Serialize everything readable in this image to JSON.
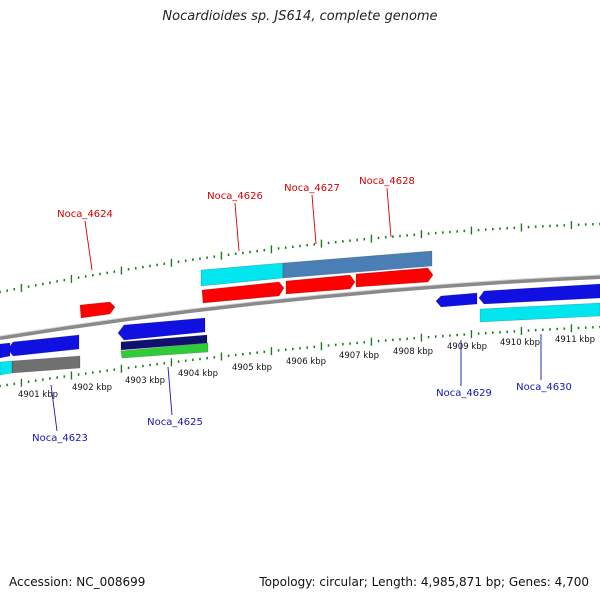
{
  "header": {
    "title": "Nocardioides sp. JS614, complete genome"
  },
  "footer": {
    "accession": "Accession: NC_008699",
    "stats": "Topology: circular; Length: 4,985,871 bp; Genes: 4,700"
  },
  "colors": {
    "backbone": "#8a8a8a",
    "tick": "#1f7a1f",
    "forward_gene": "#ff0000",
    "reverse_gene": "#1010e0",
    "forward_label": "#d40000",
    "reverse_label": "#1515b0",
    "cyan_feature": "#00e5ee",
    "steel_feature": "#4a7fb5",
    "navy_feature": "#101070",
    "green_feature": "#2fcc3a",
    "gray_feature": "#707070"
  },
  "scale_labels": [
    "4901 kbp",
    "4902 kbp",
    "4903 kbp",
    "4904 kbp",
    "4905 kbp",
    "4906 kbp",
    "4907 kbp",
    "4908 kbp",
    "4909 kbp",
    "4910 kbp",
    "4911 kbp"
  ],
  "gene_labels": {
    "forward": [
      "Noca_4624",
      "Noca_4626",
      "Noca_4627",
      "Noca_4628"
    ],
    "reverse": [
      "Noca_4623",
      "Noca_4625",
      "Noca_4629",
      "Noca_4630"
    ]
  }
}
